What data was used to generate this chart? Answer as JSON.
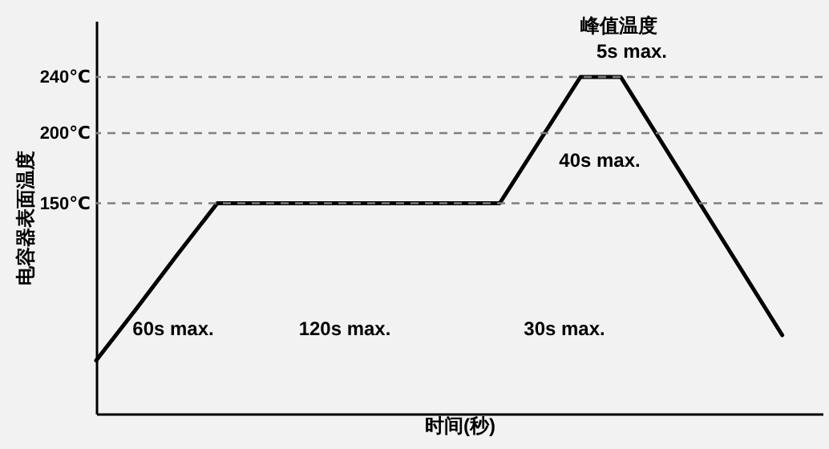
{
  "chart_data": {
    "type": "line",
    "xlabel": "时间(秒)",
    "ylabel": "电容器表面温度",
    "categories": [
      null,
      null,
      null,
      null,
      null,
      null,
      null,
      null,
      null,
      null,
      null,
      null,
      null,
      null,
      null,
      null,
      null,
      null,
      null
    ],
    "series": [
      {
        "color": "#000000",
        "values": [
          38,
          75,
          113,
          150,
          150,
          150,
          150,
          150,
          150,
          150,
          150,
          195,
          240,
          240,
          194,
          148,
          102,
          56,
          null
        ]
      }
    ],
    "ylim": [
      0,
      280
    ],
    "yticks": [
      {
        "value": 150,
        "label": "150℃"
      },
      {
        "value": 200,
        "label": "200℃"
      },
      {
        "value": 240,
        "label": "240℃"
      }
    ],
    "tick_labels": "y",
    "grid": false,
    "marker": "none",
    "line_style": "solid",
    "ref_lines": [
      {
        "axis": "y",
        "value": 150,
        "color": "#7f7f7f",
        "line_style": "dashed"
      },
      {
        "axis": "y",
        "value": 200,
        "color": "#7f7f7f",
        "line_style": "dashed"
      },
      {
        "axis": "y",
        "value": 240,
        "color": "#7f7f7f",
        "line_style": "dashed"
      }
    ],
    "annotations": [
      "60s max.",
      "120s max.",
      "30s max.",
      "40s max.",
      "5s max.",
      "峰值温度"
    ]
  }
}
